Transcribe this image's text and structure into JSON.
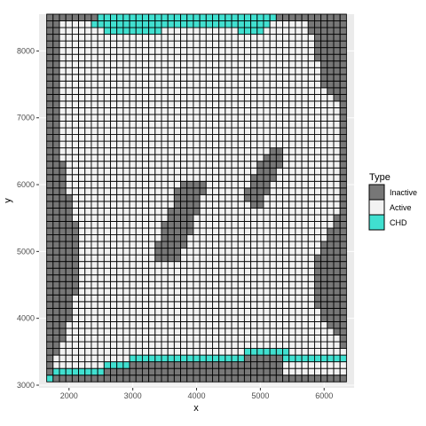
{
  "chart_data": {
    "type": "heatmap",
    "title": "",
    "xlabel": "x",
    "ylabel": "y",
    "xlim": [
      1530,
      6470
    ],
    "ylim": [
      2960,
      8550
    ],
    "x_ticks": [
      2000,
      3000,
      4000,
      5000,
      6000
    ],
    "y_ticks": [
      3000,
      4000,
      5000,
      6000,
      7000,
      8000
    ],
    "grid": true,
    "cell_size": 100,
    "x_start": 1700,
    "x_end": 6300,
    "y_start": 3100,
    "y_end": 8500,
    "legend": {
      "title": "Type",
      "placement": "right",
      "entries": [
        "Inactive",
        "Active",
        "CHD"
      ]
    },
    "colors": {
      "Inactive": "#777777",
      "Active": "#f2f2f2",
      "CHD": "#40e0d0",
      "cell_border": "#000000",
      "panel": "#ebebeb",
      "grid_major": "#ffffff"
    },
    "categories_note": "Cells are Inactive (left/right edges, two interior blobs, bottom rows), Active (interior), CHD (top band and lower band)",
    "regions": {
      "left_inactive_edge": [
        [
          8400,
          2
        ],
        [
          8300,
          2
        ],
        [
          8200,
          2
        ],
        [
          8100,
          2
        ],
        [
          8000,
          2
        ],
        [
          7900,
          2
        ],
        [
          7800,
          2
        ],
        [
          7700,
          2
        ],
        [
          7600,
          2
        ],
        [
          7500,
          2
        ],
        [
          7400,
          2
        ],
        [
          7300,
          2
        ],
        [
          7200,
          2
        ],
        [
          7100,
          2
        ],
        [
          7000,
          2
        ],
        [
          6900,
          2
        ],
        [
          6800,
          2
        ],
        [
          6700,
          2
        ],
        [
          6600,
          2
        ],
        [
          6500,
          2
        ],
        [
          6400,
          2
        ],
        [
          6300,
          3
        ],
        [
          6200,
          3
        ],
        [
          6100,
          3
        ],
        [
          6000,
          3
        ],
        [
          5900,
          3
        ],
        [
          5800,
          4
        ],
        [
          5700,
          4
        ],
        [
          5600,
          4
        ],
        [
          5500,
          4
        ],
        [
          5400,
          5
        ],
        [
          5300,
          5
        ],
        [
          5200,
          5
        ],
        [
          5100,
          5
        ],
        [
          5000,
          5
        ],
        [
          4900,
          5
        ],
        [
          4800,
          5
        ],
        [
          4700,
          5
        ],
        [
          4600,
          5
        ],
        [
          4500,
          5
        ],
        [
          4400,
          5
        ],
        [
          4300,
          4
        ],
        [
          4200,
          4
        ],
        [
          4100,
          4
        ],
        [
          4000,
          4
        ],
        [
          3900,
          3
        ],
        [
          3800,
          3
        ],
        [
          3700,
          3
        ],
        [
          3600,
          2
        ],
        [
          3500,
          2
        ],
        [
          3400,
          1
        ],
        [
          3300,
          1
        ],
        [
          3200,
          1
        ],
        [
          3100,
          0
        ]
      ],
      "right_inactive_edge": [
        [
          8400,
          6
        ],
        [
          8300,
          6
        ],
        [
          8200,
          5
        ],
        [
          8100,
          5
        ],
        [
          8000,
          5
        ],
        [
          7900,
          5
        ],
        [
          7800,
          4
        ],
        [
          7700,
          4
        ],
        [
          7600,
          4
        ],
        [
          7500,
          4
        ],
        [
          7400,
          3
        ],
        [
          7300,
          2
        ],
        [
          7200,
          1
        ],
        [
          7100,
          1
        ],
        [
          7000,
          1
        ],
        [
          6900,
          1
        ],
        [
          6800,
          1
        ],
        [
          6700,
          1
        ],
        [
          6600,
          1
        ],
        [
          6500,
          1
        ],
        [
          6400,
          1
        ],
        [
          6300,
          1
        ],
        [
          6200,
          1
        ],
        [
          6100,
          1
        ],
        [
          6000,
          1
        ],
        [
          5900,
          1
        ],
        [
          5800,
          1
        ],
        [
          5700,
          1
        ],
        [
          5600,
          1
        ],
        [
          5500,
          2
        ],
        [
          5400,
          2
        ],
        [
          5300,
          3
        ],
        [
          5200,
          3
        ],
        [
          5100,
          4
        ],
        [
          5000,
          4
        ],
        [
          4900,
          5
        ],
        [
          4800,
          5
        ],
        [
          4700,
          5
        ],
        [
          4600,
          5
        ],
        [
          4500,
          5
        ],
        [
          4400,
          5
        ],
        [
          4300,
          5
        ],
        [
          4200,
          5
        ],
        [
          4100,
          4
        ],
        [
          4000,
          4
        ],
        [
          3900,
          3
        ],
        [
          3800,
          2
        ],
        [
          3700,
          1
        ],
        [
          3600,
          1
        ]
      ]
    }
  }
}
